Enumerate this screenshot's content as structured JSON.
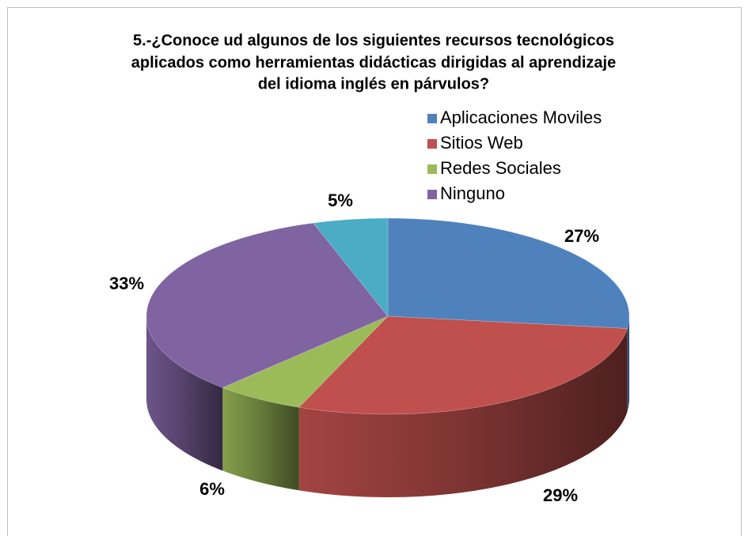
{
  "chart_data": {
    "type": "pie",
    "title": [
      "5.-¿Conoce ud algunos de los siguientes recursos tecnológicos",
      "aplicados como herramientas didácticas dirigidas al aprendizaje",
      "del idioma inglés en párvulos?"
    ],
    "categories": [
      "Aplicaciones Moviles",
      "Sitios Web",
      "Redes Sociales",
      "Ninguno",
      null
    ],
    "values": [
      27,
      29,
      6,
      33,
      5
    ],
    "value_labels": [
      "27%",
      "29%",
      "6%",
      "33%",
      "5%"
    ],
    "colors": [
      "#4f81bd",
      "#c0504d",
      "#9bbb59",
      "#8064a2",
      "#4bacc6"
    ],
    "legend": "top-right"
  }
}
